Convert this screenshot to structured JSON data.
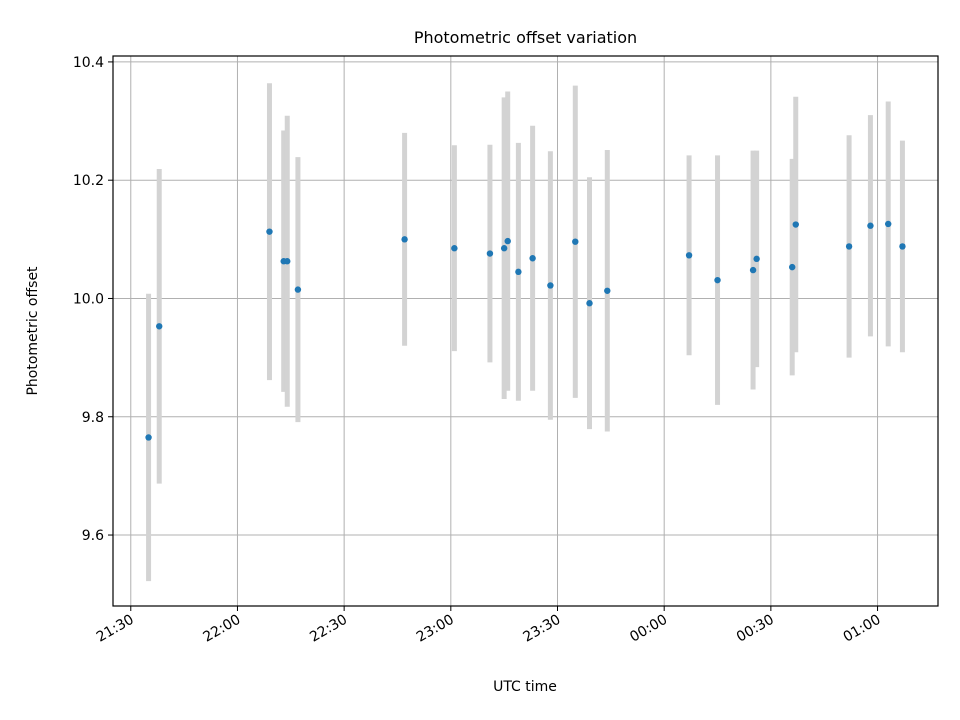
{
  "chart_data": {
    "type": "scatter",
    "title": "Photometric offset variation",
    "xlabel": "UTC time",
    "ylabel": "Photometric offset",
    "x_axis_type": "time",
    "xlim": [
      "21:25",
      "01:17"
    ],
    "ylim": [
      9.48,
      10.41
    ],
    "grid": true,
    "x_ticks": [
      "21:30",
      "22:00",
      "22:30",
      "23:00",
      "23:30",
      "00:00",
      "00:30",
      "01:00"
    ],
    "y_ticks": [
      "9.6",
      "9.8",
      "10.0",
      "10.2",
      "10.4"
    ],
    "colors": {
      "point": "#1f77b4",
      "errorbar": "#d3d3d3",
      "grid": "#b0b0b0"
    },
    "points": [
      {
        "time": "21:35",
        "y": 9.765,
        "err": 0.243
      },
      {
        "time": "21:38",
        "y": 9.953,
        "err": 0.266
      },
      {
        "time": "22:09",
        "y": 10.113,
        "err": 0.251
      },
      {
        "time": "22:13",
        "y": 10.063,
        "err": 0.221
      },
      {
        "time": "22:14",
        "y": 10.063,
        "err": 0.246
      },
      {
        "time": "22:17",
        "y": 10.015,
        "err": 0.224
      },
      {
        "time": "22:47",
        "y": 10.1,
        "err": 0.18
      },
      {
        "time": "23:01",
        "y": 10.085,
        "err": 0.174
      },
      {
        "time": "23:11",
        "y": 10.076,
        "err": 0.184
      },
      {
        "time": "23:15",
        "y": 10.085,
        "err": 0.255
      },
      {
        "time": "23:16",
        "y": 10.097,
        "err": 0.253
      },
      {
        "time": "23:19",
        "y": 10.045,
        "err": 0.218
      },
      {
        "time": "23:23",
        "y": 10.068,
        "err": 0.224
      },
      {
        "time": "23:28",
        "y": 10.022,
        "err": 0.227
      },
      {
        "time": "23:35",
        "y": 10.096,
        "err": 0.264
      },
      {
        "time": "23:39",
        "y": 9.992,
        "err": 0.213
      },
      {
        "time": "23:44",
        "y": 10.013,
        "err": 0.238
      },
      {
        "time": "00:07",
        "y": 10.073,
        "err": 0.169
      },
      {
        "time": "00:15",
        "y": 10.031,
        "err": 0.211
      },
      {
        "time": "00:25",
        "y": 10.048,
        "err": 0.202
      },
      {
        "time": "00:26",
        "y": 10.067,
        "err": 0.183
      },
      {
        "time": "00:36",
        "y": 10.053,
        "err": 0.183
      },
      {
        "time": "00:37",
        "y": 10.125,
        "err": 0.216
      },
      {
        "time": "00:52",
        "y": 10.088,
        "err": 0.188
      },
      {
        "time": "00:58",
        "y": 10.123,
        "err": 0.187
      },
      {
        "time": "01:03",
        "y": 10.126,
        "err": 0.207
      },
      {
        "time": "01:07",
        "y": 10.088,
        "err": 0.179
      }
    ]
  }
}
